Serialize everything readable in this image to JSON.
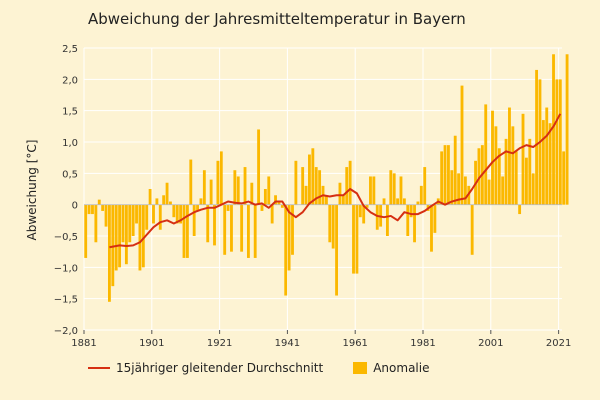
{
  "chart_data": {
    "type": "bar",
    "title": "Abweichung der Jahresmitteltemperatur in Bayern",
    "ylabel": "Abweichung [°C]",
    "xlabel": "",
    "ylim": [
      -2.0,
      2.5
    ],
    "xlim": [
      1881,
      2022
    ],
    "grid": true,
    "y_ticks": [
      "2,5",
      "2,0",
      "1,5",
      "1,0",
      "0,5",
      "0",
      "−0,5",
      "−1,0",
      "−1,5",
      "−2,0"
    ],
    "x_ticks": [
      "1881",
      "1901",
      "1921",
      "1941",
      "1961",
      "1981",
      "2001",
      "2021"
    ],
    "colors": {
      "anomaly": "#fbb800",
      "average": "#d62f12",
      "grid": "#ffffff",
      "background": "#fdf3d3"
    },
    "series": [
      {
        "name": "Anomalie",
        "type": "bar",
        "start_year": 1881,
        "values": [
          -0.85,
          -0.15,
          -0.15,
          -0.6,
          0.08,
          -0.1,
          -0.35,
          -1.55,
          -1.3,
          -1.05,
          -1.0,
          -0.6,
          -0.95,
          -0.6,
          -0.5,
          -0.3,
          -1.05,
          -1.0,
          -0.4,
          0.25,
          -0.3,
          0.1,
          -0.4,
          0.15,
          0.35,
          0.05,
          -0.2,
          -0.3,
          -0.3,
          -0.85,
          -0.85,
          0.72,
          -0.5,
          -0.1,
          0.1,
          0.55,
          -0.6,
          0.4,
          -0.65,
          0.7,
          0.85,
          -0.8,
          -0.1,
          -0.75,
          0.55,
          0.45,
          -0.75,
          0.6,
          -0.85,
          0.35,
          -0.85,
          1.2,
          -0.1,
          0.25,
          0.45,
          -0.3,
          0.15,
          0.05,
          -0.05,
          -1.45,
          -1.05,
          -0.8,
          0.7,
          0.0,
          0.6,
          0.3,
          0.8,
          0.9,
          0.6,
          0.55,
          0.3,
          0.15,
          -0.6,
          -0.7,
          -1.45,
          0.35,
          0.15,
          0.6,
          0.7,
          -1.1,
          -1.1,
          -0.2,
          -0.3,
          -0.05,
          0.45,
          0.45,
          -0.4,
          -0.35,
          0.1,
          -0.5,
          0.55,
          0.5,
          0.1,
          0.45,
          0.1,
          -0.5,
          -0.2,
          -0.6,
          0.05,
          0.3,
          0.6,
          -0.1,
          -0.75,
          -0.45,
          0.1,
          0.85,
          0.95,
          0.95,
          0.55,
          1.1,
          0.5,
          1.9,
          0.45,
          0.3,
          -0.8,
          0.7,
          0.9,
          0.95,
          1.6,
          0.4,
          1.5,
          1.25,
          0.9,
          0.45,
          1.05,
          1.55,
          1.25,
          0.85,
          -0.15,
          1.45,
          0.75,
          1.05,
          0.5,
          2.15,
          2.0,
          1.35,
          1.55,
          1.3,
          2.4,
          2.0,
          2.0,
          0.85,
          2.4
        ]
      },
      {
        "name": "15jähriger gleitender Durchschnitt",
        "type": "line",
        "points": [
          [
            1888,
            -0.68
          ],
          [
            1891,
            -0.65
          ],
          [
            1893,
            -0.66
          ],
          [
            1895,
            -0.65
          ],
          [
            1897,
            -0.6
          ],
          [
            1899,
            -0.48
          ],
          [
            1901,
            -0.36
          ],
          [
            1903,
            -0.28
          ],
          [
            1905,
            -0.25
          ],
          [
            1907,
            -0.3
          ],
          [
            1909,
            -0.25
          ],
          [
            1911,
            -0.18
          ],
          [
            1913,
            -0.12
          ],
          [
            1915,
            -0.08
          ],
          [
            1917,
            -0.05
          ],
          [
            1919,
            -0.05
          ],
          [
            1921,
            0.0
          ],
          [
            1923,
            0.05
          ],
          [
            1925,
            0.03
          ],
          [
            1927,
            0.02
          ],
          [
            1929,
            0.05
          ],
          [
            1931,
            0.0
          ],
          [
            1933,
            0.02
          ],
          [
            1935,
            -0.05
          ],
          [
            1937,
            0.05
          ],
          [
            1939,
            0.05
          ],
          [
            1941,
            -0.12
          ],
          [
            1943,
            -0.2
          ],
          [
            1945,
            -0.12
          ],
          [
            1947,
            0.02
          ],
          [
            1949,
            0.1
          ],
          [
            1951,
            0.15
          ],
          [
            1953,
            0.13
          ],
          [
            1955,
            0.15
          ],
          [
            1957,
            0.15
          ],
          [
            1959,
            0.25
          ],
          [
            1961,
            0.18
          ],
          [
            1963,
            -0.02
          ],
          [
            1965,
            -0.12
          ],
          [
            1967,
            -0.18
          ],
          [
            1969,
            -0.2
          ],
          [
            1971,
            -0.18
          ],
          [
            1973,
            -0.25
          ],
          [
            1975,
            -0.12
          ],
          [
            1977,
            -0.15
          ],
          [
            1979,
            -0.15
          ],
          [
            1981,
            -0.1
          ],
          [
            1983,
            -0.02
          ],
          [
            1985,
            0.05
          ],
          [
            1987,
            0.0
          ],
          [
            1989,
            0.05
          ],
          [
            1991,
            0.08
          ],
          [
            1993,
            0.1
          ],
          [
            1995,
            0.25
          ],
          [
            1997,
            0.42
          ],
          [
            1999,
            0.55
          ],
          [
            2001,
            0.68
          ],
          [
            2003,
            0.78
          ],
          [
            2005,
            0.85
          ],
          [
            2007,
            0.82
          ],
          [
            2009,
            0.9
          ],
          [
            2011,
            0.95
          ],
          [
            2013,
            0.92
          ],
          [
            2015,
            1.0
          ],
          [
            2017,
            1.1
          ],
          [
            2019,
            1.25
          ],
          [
            2021,
            1.45
          ]
        ]
      }
    ]
  },
  "legend": {
    "line_label": "15jähriger gleitender Durchschnitt",
    "bar_label": "Anomalie"
  }
}
